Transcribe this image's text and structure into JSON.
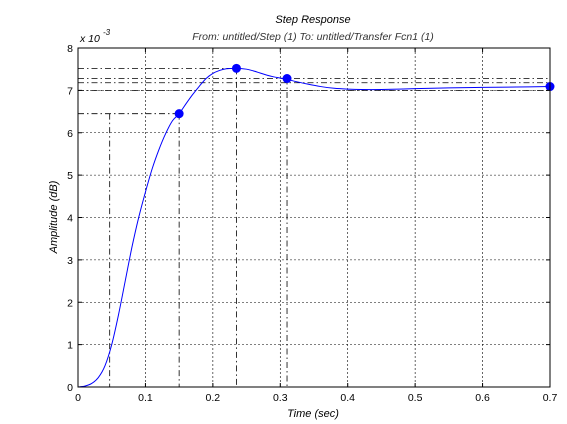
{
  "figure": {
    "title": "Step Response",
    "subtitle": "From: untitled/Step (1)  To: untitled/Transfer Fcn1 (1)"
  },
  "chart_data": {
    "type": "line",
    "title": "Step Response",
    "subtitle": "From: untitled/Step (1)  To: untitled/Transfer Fcn1 (1)",
    "xlabel": "Time (sec)",
    "ylabel": "Amplitude    (dB)",
    "y_exponent_label": "x 10",
    "y_exponent_power": "-3",
    "xlim": [
      0,
      0.7
    ],
    "ylim": [
      0,
      8
    ],
    "x_ticks": [
      0,
      0.1,
      0.2,
      0.3,
      0.4,
      0.5,
      0.6,
      0.7
    ],
    "x_tick_labels": [
      "0",
      "0.1",
      "0.2",
      "0.3",
      "0.4",
      "0.5",
      "0.6",
      "0.7"
    ],
    "y_ticks": [
      0,
      1,
      2,
      3,
      4,
      5,
      6,
      7,
      8
    ],
    "y_tick_labels": [
      "0",
      "1",
      "2",
      "3",
      "4",
      "5",
      "6",
      "7",
      "8"
    ],
    "grid": true,
    "series": [
      {
        "color": "#0000ff",
        "x": [
          0,
          0.01,
          0.02,
          0.03,
          0.04,
          0.05,
          0.06,
          0.07,
          0.08,
          0.09,
          0.1,
          0.11,
          0.12,
          0.13,
          0.14,
          0.15,
          0.16,
          0.17,
          0.18,
          0.19,
          0.2,
          0.21,
          0.22,
          0.235,
          0.25,
          0.26,
          0.27,
          0.28,
          0.29,
          0.3,
          0.31,
          0.32,
          0.34,
          0.36,
          0.38,
          0.4,
          0.42,
          0.45,
          0.5,
          0.55,
          0.6,
          0.65,
          0.7
        ],
        "y": [
          0,
          0.02,
          0.08,
          0.22,
          0.5,
          1.0,
          1.7,
          2.5,
          3.3,
          4.0,
          4.6,
          5.15,
          5.6,
          5.98,
          6.28,
          6.45,
          6.68,
          6.9,
          7.1,
          7.28,
          7.4,
          7.47,
          7.51,
          7.52,
          7.5,
          7.46,
          7.41,
          7.36,
          7.32,
          7.29,
          7.26,
          7.22,
          7.15,
          7.09,
          7.05,
          7.03,
          7.02,
          7.02,
          7.04,
          7.06,
          7.07,
          7.08,
          7.09
        ]
      }
    ],
    "markers": [
      {
        "x": 0.15,
        "y": 6.45
      },
      {
        "x": 0.235,
        "y": 7.52
      },
      {
        "x": 0.31,
        "y": 7.28
      },
      {
        "x": 0.7,
        "y": 7.09
      }
    ],
    "reference_lines": {
      "horizontal": [
        {
          "y": 6.45,
          "x_start": 0.0,
          "x_end": 0.15
        },
        {
          "y": 7.52,
          "x_start": 0.0,
          "x_end": 0.235
        },
        {
          "y": 7.28,
          "x_start": 0.0,
          "x_end": 0.7
        },
        {
          "y": 7.18,
          "x_start": 0.0,
          "x_end": 0.7
        },
        {
          "y": 7.0,
          "x_start": 0.0,
          "x_end": 0.7
        }
      ],
      "vertical": [
        {
          "x": 0.047,
          "y_end": 6.45
        },
        {
          "x": 0.15,
          "y_end": 6.45
        },
        {
          "x": 0.235,
          "y_end": 7.52
        },
        {
          "x": 0.31,
          "y_end": 7.28
        }
      ]
    }
  }
}
